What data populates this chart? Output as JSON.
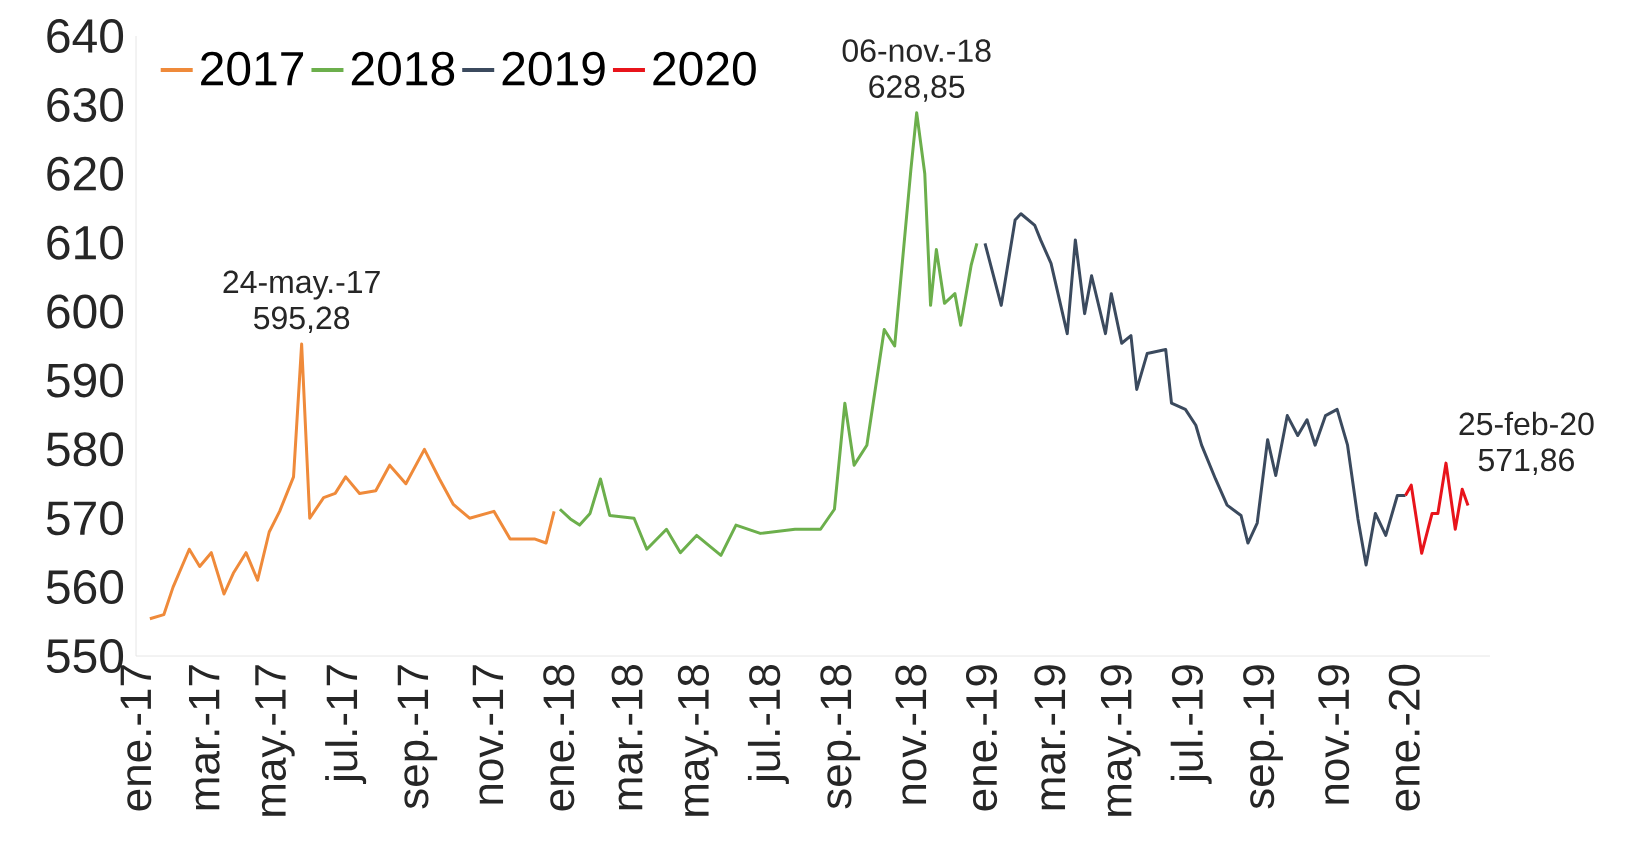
{
  "chart_data": {
    "type": "line",
    "series": [
      {
        "name": "2017",
        "color": "#ef8a3a",
        "x": [
          "2017-01-13",
          "2017-01-25",
          "2017-02-02",
          "2017-02-16",
          "2017-02-25",
          "2017-03-07",
          "2017-03-18",
          "2017-03-26",
          "2017-04-06",
          "2017-04-16",
          "2017-04-26",
          "2017-05-05",
          "2017-05-17",
          "2017-05-24",
          "2017-05-31",
          "2017-06-12",
          "2017-06-22",
          "2017-07-01",
          "2017-07-13",
          "2017-07-27",
          "2017-08-08",
          "2017-08-22",
          "2017-09-07",
          "2017-09-20",
          "2017-10-02",
          "2017-10-16",
          "2017-11-06",
          "2017-11-20",
          "2017-12-11",
          "2017-12-21",
          "2017-12-28"
        ],
        "values": [
          555.4,
          556,
          560,
          565.5,
          563,
          565,
          559,
          562,
          565,
          561,
          568,
          571,
          576,
          595.28,
          570,
          573,
          573.6,
          576,
          573.6,
          574,
          577.7,
          575,
          580,
          575.7,
          572,
          570,
          571,
          567,
          567,
          566.4,
          571
        ]
      },
      {
        "name": "2018",
        "color": "#6caf4c",
        "x": [
          "2018-01-02",
          "2018-01-11",
          "2018-01-19",
          "2018-01-28",
          "2018-02-06",
          "2018-02-14",
          "2018-03-07",
          "2018-03-18",
          "2018-04-04",
          "2018-04-16",
          "2018-04-30",
          "2018-05-21",
          "2018-06-03",
          "2018-06-24",
          "2018-07-24",
          "2018-08-15",
          "2018-08-27",
          "2018-09-05",
          "2018-09-13",
          "2018-09-24",
          "2018-10-09",
          "2018-10-18",
          "2018-11-01",
          "2018-11-06",
          "2018-11-13",
          "2018-11-18",
          "2018-11-23",
          "2018-11-30",
          "2018-12-09",
          "2018-12-14",
          "2018-12-23",
          "2018-12-28"
        ],
        "values": [
          571.3,
          569.9,
          569,
          570.7,
          575.7,
          570.4,
          570,
          565.5,
          568.4,
          565,
          567.5,
          564.6,
          569,
          567.8,
          568.4,
          568.4,
          571.3,
          586.7,
          577.7,
          580.6,
          597.4,
          595,
          620.6,
          628.85,
          620,
          600.9,
          609,
          601.2,
          602.6,
          598,
          606.7,
          609.9
        ]
      },
      {
        "name": "2019",
        "color": "#3b4a5e",
        "x": [
          "2019-01-04",
          "2019-01-18",
          "2019-01-30",
          "2019-02-04",
          "2019-02-16",
          "2019-02-21",
          "2019-03-02",
          "2019-03-16",
          "2019-03-23",
          "2019-03-31",
          "2019-04-06",
          "2019-04-18",
          "2019-04-23",
          "2019-05-02",
          "2019-05-10",
          "2019-05-15",
          "2019-05-24",
          "2019-06-09",
          "2019-06-14",
          "2019-06-26",
          "2019-07-05",
          "2019-07-10",
          "2019-07-22",
          "2019-08-01",
          "2019-08-13",
          "2019-08-19",
          "2019-08-27",
          "2019-09-05",
          "2019-09-12",
          "2019-09-22",
          "2019-10-01",
          "2019-10-09",
          "2019-10-16",
          "2019-10-25",
          "2019-11-04",
          "2019-11-13",
          "2019-11-22",
          "2019-11-29",
          "2019-12-07",
          "2019-12-16",
          "2019-12-26",
          "2020-01-02"
        ],
        "values": [
          609.9,
          600.9,
          613.3,
          614.2,
          612.5,
          610.4,
          607,
          596.8,
          610.4,
          599.7,
          605.2,
          596.8,
          602.6,
          595.4,
          596.5,
          588.7,
          593.9,
          594.5,
          586.7,
          585.8,
          583.5,
          580.6,
          575.7,
          571.9,
          570.4,
          566.4,
          569.3,
          581.4,
          576.2,
          584.9,
          582,
          584.3,
          580.6,
          584.9,
          585.8,
          580.6,
          569.9,
          563.2,
          570.7,
          567.5,
          573.3,
          573.3
        ]
      },
      {
        "name": "2020",
        "color": "#e8141b",
        "x": [
          "2020-01-02",
          "2020-01-07",
          "2020-01-16",
          "2020-01-25",
          "2020-01-30",
          "2020-02-06",
          "2020-02-14",
          "2020-02-20",
          "2020-02-25"
        ],
        "values": [
          573.3,
          574.8,
          564.9,
          570.7,
          570.7,
          578,
          568.4,
          574.2,
          571.86
        ]
      }
    ],
    "annotations": [
      {
        "text": "24-may.-17 595,28",
        "x": "2017-05-24",
        "y": 595.28
      },
      {
        "text": "06-nov.-18 628,85",
        "x": "2018-11-06",
        "y": 628.85
      },
      {
        "text": "25-feb-20 571,86",
        "x": "2020-02-25",
        "y": 571.86
      }
    ],
    "xlim": [
      "2017-01-01",
      "2020-03-15"
    ],
    "xticks": [
      {
        "value": "2017-01",
        "label": "ene.-17"
      },
      {
        "value": "2017-03",
        "label": "mar.-17"
      },
      {
        "value": "2017-05",
        "label": "may.-17"
      },
      {
        "value": "2017-07",
        "label": "jul.-17"
      },
      {
        "value": "2017-09",
        "label": "sep.-17"
      },
      {
        "value": "2017-11",
        "label": "nov.-17"
      },
      {
        "value": "2018-01",
        "label": "ene.-18"
      },
      {
        "value": "2018-03",
        "label": "mar.-18"
      },
      {
        "value": "2018-05",
        "label": "may.-18"
      },
      {
        "value": "2018-07",
        "label": "jul.-18"
      },
      {
        "value": "2018-09",
        "label": "sep.-18"
      },
      {
        "value": "2018-11",
        "label": "nov.-18"
      },
      {
        "value": "2019-01",
        "label": "ene.-19"
      },
      {
        "value": "2019-03",
        "label": "mar.-19"
      },
      {
        "value": "2019-05",
        "label": "may.-19"
      },
      {
        "value": "2019-07",
        "label": "jul.-19"
      },
      {
        "value": "2019-09",
        "label": "sep.-19"
      },
      {
        "value": "2019-11",
        "label": "nov.-19"
      },
      {
        "value": "2020-01",
        "label": "ene.-20"
      }
    ],
    "ylim": [
      550,
      640
    ],
    "yticks": [
      550,
      560,
      570,
      580,
      590,
      600,
      610,
      620,
      630,
      640
    ],
    "legend": "top left"
  }
}
